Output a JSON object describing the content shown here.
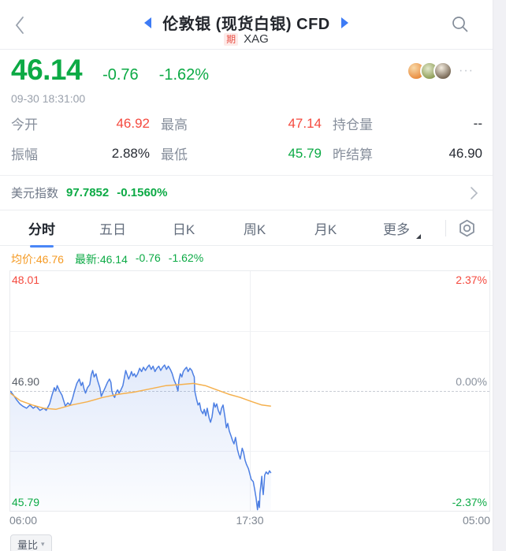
{
  "header": {
    "title": "伦敦银 (现货白银) CFD",
    "badge": "期",
    "symbol": "XAG"
  },
  "quote": {
    "last": "46.14",
    "change": "-0.76",
    "change_pct": "-1.62%",
    "timestamp": "09-30 18:31:00",
    "more": "···"
  },
  "stats": {
    "rows": [
      [
        {
          "label": "今开",
          "value": "46.92",
          "tone": "up"
        },
        {
          "label": "最高",
          "value": "47.14",
          "tone": "up"
        },
        {
          "label": "持仓量",
          "value": "--",
          "tone": "flat"
        }
      ],
      [
        {
          "label": "振幅",
          "value": "2.88%",
          "tone": "flat"
        },
        {
          "label": "最低",
          "value": "45.79",
          "tone": "down"
        },
        {
          "label": "昨结算",
          "value": "46.90",
          "tone": "flat"
        }
      ]
    ]
  },
  "usd_index": {
    "label": "美元指数",
    "value": "97.7852",
    "change_pct": "-0.1560%"
  },
  "tabs": {
    "items": [
      {
        "label": "分时"
      },
      {
        "label": "五日"
      },
      {
        "label": "日K"
      },
      {
        "label": "周K"
      },
      {
        "label": "月K"
      },
      {
        "label": "更多"
      }
    ],
    "active_index": 0
  },
  "legend": {
    "avg": "均价:46.76",
    "last": "最新:46.14",
    "change": "-0.76",
    "change_pct": "-1.62%"
  },
  "chart_data": {
    "type": "line",
    "title": "XAG 分时走势",
    "x_axis": {
      "labels": [
        "06:00",
        "17:30",
        "05:00"
      ],
      "session": "06:00 → 05:00"
    },
    "y_axis": {
      "left_labels": [
        "48.01",
        "46.90",
        "45.79"
      ],
      "right_labels": [
        "2.37%",
        "0.00%",
        "-2.37%"
      ],
      "ylim": [
        45.79,
        48.01
      ],
      "baseline": 46.9
    },
    "grid": {
      "horizontal_quarters": true,
      "center_dashed": true,
      "center_vertical": true
    },
    "series": [
      {
        "name": "price",
        "color": "#4d7fe3",
        "fill_from": "rgba(77,127,227,0.16)",
        "fill_to": "rgba(77,127,227,0.02)",
        "points": [
          [
            0.0,
            46.9
          ],
          [
            0.007,
            46.86
          ],
          [
            0.013,
            46.82
          ],
          [
            0.02,
            46.78
          ],
          [
            0.026,
            46.76
          ],
          [
            0.034,
            46.74
          ],
          [
            0.041,
            46.77
          ],
          [
            0.048,
            46.74
          ],
          [
            0.054,
            46.76
          ],
          [
            0.062,
            46.72
          ],
          [
            0.07,
            46.74
          ],
          [
            0.075,
            46.72
          ],
          [
            0.082,
            46.78
          ],
          [
            0.087,
            46.86
          ],
          [
            0.092,
            46.93
          ],
          [
            0.095,
            46.9
          ],
          [
            0.098,
            46.95
          ],
          [
            0.103,
            46.9
          ],
          [
            0.108,
            46.86
          ],
          [
            0.115,
            46.76
          ],
          [
            0.12,
            46.79
          ],
          [
            0.125,
            46.77
          ],
          [
            0.13,
            46.83
          ],
          [
            0.134,
            46.9
          ],
          [
            0.139,
            46.97
          ],
          [
            0.144,
            47.01
          ],
          [
            0.148,
            46.95
          ],
          [
            0.151,
            46.98
          ],
          [
            0.154,
            46.92
          ],
          [
            0.157,
            46.88
          ],
          [
            0.161,
            46.93
          ],
          [
            0.166,
            46.96
          ],
          [
            0.169,
            47.05
          ],
          [
            0.172,
            47.09
          ],
          [
            0.175,
            47.03
          ],
          [
            0.179,
            47.06
          ],
          [
            0.182,
            47.0
          ],
          [
            0.187,
            46.93
          ],
          [
            0.19,
            46.85
          ],
          [
            0.193,
            46.88
          ],
          [
            0.198,
            46.93
          ],
          [
            0.203,
            46.98
          ],
          [
            0.207,
            47.01
          ],
          [
            0.21,
            46.98
          ],
          [
            0.212,
            46.9
          ],
          [
            0.215,
            46.86
          ],
          [
            0.218,
            46.84
          ],
          [
            0.221,
            46.89
          ],
          [
            0.224,
            46.91
          ],
          [
            0.227,
            46.88
          ],
          [
            0.231,
            46.91
          ],
          [
            0.235,
            46.95
          ],
          [
            0.238,
            47.02
          ],
          [
            0.241,
            47.09
          ],
          [
            0.244,
            47.05
          ],
          [
            0.247,
            47.01
          ],
          [
            0.25,
            47.04
          ],
          [
            0.253,
            47.08
          ],
          [
            0.256,
            47.04
          ],
          [
            0.259,
            47.06
          ],
          [
            0.262,
            47.03
          ],
          [
            0.266,
            47.06
          ],
          [
            0.27,
            47.11
          ],
          [
            0.274,
            47.08
          ],
          [
            0.278,
            47.12
          ],
          [
            0.282,
            47.09
          ],
          [
            0.286,
            47.12
          ],
          [
            0.29,
            47.14
          ],
          [
            0.294,
            47.1
          ],
          [
            0.298,
            47.13
          ],
          [
            0.302,
            47.08
          ],
          [
            0.306,
            47.11
          ],
          [
            0.31,
            47.13
          ],
          [
            0.314,
            47.09
          ],
          [
            0.318,
            47.12
          ],
          [
            0.322,
            47.14
          ],
          [
            0.326,
            47.1
          ],
          [
            0.33,
            47.13
          ],
          [
            0.334,
            47.1
          ],
          [
            0.338,
            47.06
          ],
          [
            0.342,
            47.0
          ],
          [
            0.346,
            46.96
          ],
          [
            0.35,
            46.9
          ],
          [
            0.352,
            47.0
          ],
          [
            0.355,
            47.06
          ],
          [
            0.358,
            47.03
          ],
          [
            0.361,
            47.08
          ],
          [
            0.364,
            47.1
          ],
          [
            0.368,
            47.12
          ],
          [
            0.371,
            47.08
          ],
          [
            0.375,
            47.11
          ],
          [
            0.379,
            47.09
          ],
          [
            0.382,
            47.05
          ],
          [
            0.384,
            47.03
          ],
          [
            0.385,
            46.9
          ],
          [
            0.389,
            46.82
          ],
          [
            0.392,
            46.77
          ],
          [
            0.395,
            46.79
          ],
          [
            0.398,
            46.72
          ],
          [
            0.402,
            46.69
          ],
          [
            0.405,
            46.73
          ],
          [
            0.408,
            46.67
          ],
          [
            0.411,
            46.74
          ],
          [
            0.415,
            46.65
          ],
          [
            0.418,
            46.61
          ],
          [
            0.421,
            46.66
          ],
          [
            0.425,
            46.79
          ],
          [
            0.428,
            46.75
          ],
          [
            0.431,
            46.78
          ],
          [
            0.434,
            46.72
          ],
          [
            0.438,
            46.68
          ],
          [
            0.441,
            46.74
          ],
          [
            0.444,
            46.77
          ],
          [
            0.448,
            46.66
          ],
          [
            0.451,
            46.56
          ],
          [
            0.454,
            46.6
          ],
          [
            0.457,
            46.53
          ],
          [
            0.461,
            46.48
          ],
          [
            0.464,
            46.44
          ],
          [
            0.467,
            46.41
          ],
          [
            0.47,
            46.47
          ],
          [
            0.474,
            46.36
          ],
          [
            0.477,
            46.31
          ],
          [
            0.48,
            46.27
          ],
          [
            0.484,
            46.37
          ],
          [
            0.487,
            46.33
          ],
          [
            0.49,
            46.26
          ],
          [
            0.493,
            46.22
          ],
          [
            0.497,
            46.18
          ],
          [
            0.5,
            46.13
          ],
          [
            0.503,
            46.08
          ],
          [
            0.507,
            46.06
          ],
          [
            0.51,
            45.99
          ],
          [
            0.513,
            45.91
          ],
          [
            0.516,
            45.8
          ],
          [
            0.518,
            45.88
          ],
          [
            0.52,
            45.82
          ],
          [
            0.521,
            45.95
          ],
          [
            0.523,
            46.03
          ],
          [
            0.525,
            46.11
          ],
          [
            0.526,
            46.02
          ],
          [
            0.528,
            45.94
          ],
          [
            0.53,
            46.05
          ],
          [
            0.531,
            46.12
          ],
          [
            0.534,
            46.15
          ],
          [
            0.538,
            46.13
          ],
          [
            0.541,
            46.16
          ],
          [
            0.544,
            46.14
          ]
        ]
      },
      {
        "name": "avg",
        "color": "#f5b04d",
        "points": [
          [
            0.0,
            46.88
          ],
          [
            0.021,
            46.81
          ],
          [
            0.046,
            46.77
          ],
          [
            0.07,
            46.74
          ],
          [
            0.095,
            46.73
          ],
          [
            0.128,
            46.77
          ],
          [
            0.161,
            46.8
          ],
          [
            0.193,
            46.84
          ],
          [
            0.226,
            46.87
          ],
          [
            0.259,
            46.89
          ],
          [
            0.292,
            46.92
          ],
          [
            0.325,
            46.95
          ],
          [
            0.357,
            46.96
          ],
          [
            0.382,
            46.97
          ],
          [
            0.407,
            46.95
          ],
          [
            0.431,
            46.91
          ],
          [
            0.456,
            46.87
          ],
          [
            0.48,
            46.84
          ],
          [
            0.505,
            46.8
          ],
          [
            0.525,
            46.77
          ],
          [
            0.544,
            46.76
          ]
        ]
      }
    ]
  },
  "volume_button": {
    "label": "量比",
    "caret": "▾"
  },
  "colors": {
    "up": "#f5493e",
    "down": "#0caa45",
    "avg_orange": "#f59a23",
    "accent_blue": "#3d7bf5"
  }
}
